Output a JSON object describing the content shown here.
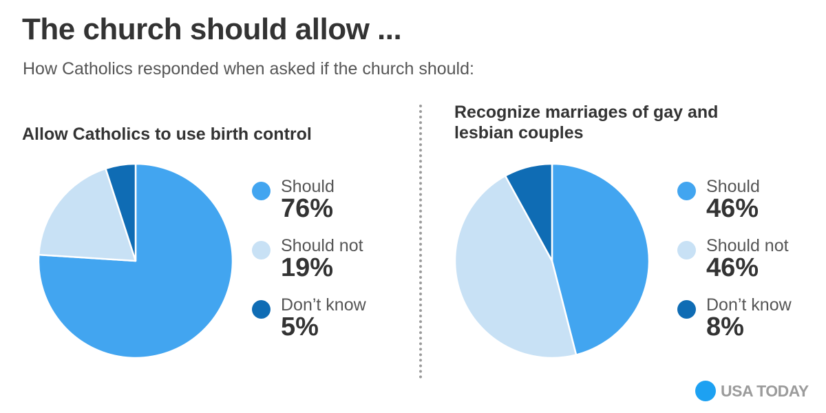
{
  "header": {
    "title": "The church should allow ...",
    "subtitle": "How Catholics responded when asked if the church should:"
  },
  "colors": {
    "should": "#42a5f0",
    "should_not": "#c8e1f5",
    "dont_know": "#0f6cb4",
    "logo_dot": "#1da1f2"
  },
  "chart_data": [
    {
      "type": "pie",
      "title": "Allow Catholics to use birth control",
      "series": [
        {
          "name": "Should",
          "value": 76,
          "label": "76%"
        },
        {
          "name": "Should not",
          "value": 19,
          "label": "19%"
        },
        {
          "name": "Don’t know",
          "value": 5,
          "label": "5%"
        }
      ],
      "legend": "right"
    },
    {
      "type": "pie",
      "title": "Recognize marriages of gay and lesbian couples",
      "series": [
        {
          "name": "Should",
          "value": 46,
          "label": "46%"
        },
        {
          "name": "Should not",
          "value": 46,
          "label": "46%"
        },
        {
          "name": "Don’t know",
          "value": 8,
          "label": "8%"
        }
      ],
      "legend": "right"
    }
  ],
  "logo": {
    "text": "USA TODAY",
    "icon": "circle-logo-icon"
  }
}
